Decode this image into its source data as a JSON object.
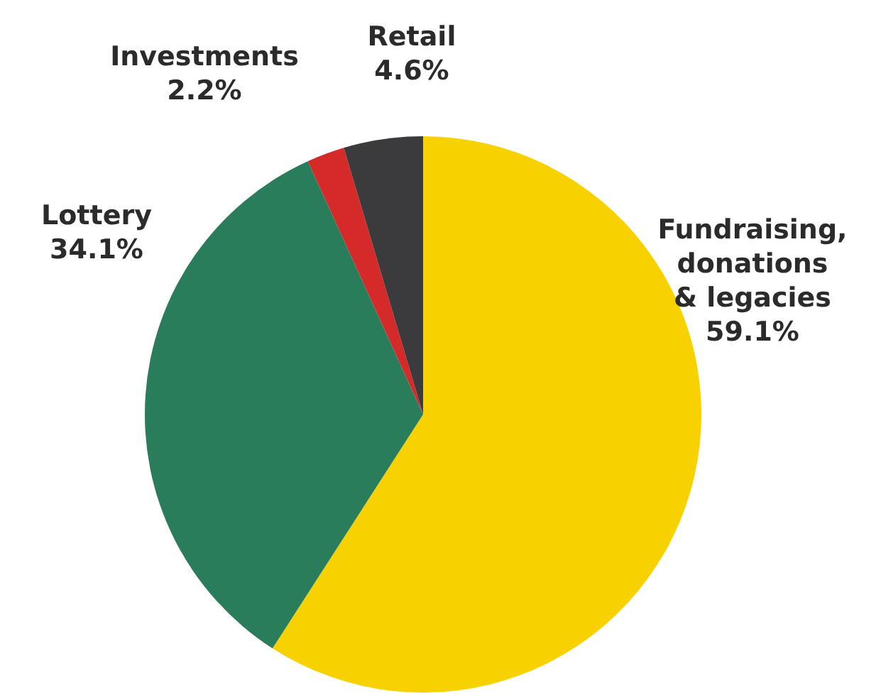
{
  "chart_data": {
    "type": "pie",
    "categories": [
      "Fundraising, donations & legacies",
      "Lottery",
      "Investments",
      "Retail"
    ],
    "values": [
      59.1,
      34.1,
      2.2,
      4.6
    ],
    "colors": [
      "#f8d200",
      "#2a7d5b",
      "#d42a2a",
      "#3b3b3d"
    ],
    "value_labels": [
      "59.1%",
      "34.1%",
      "2.2%",
      "4.6%"
    ]
  }
}
